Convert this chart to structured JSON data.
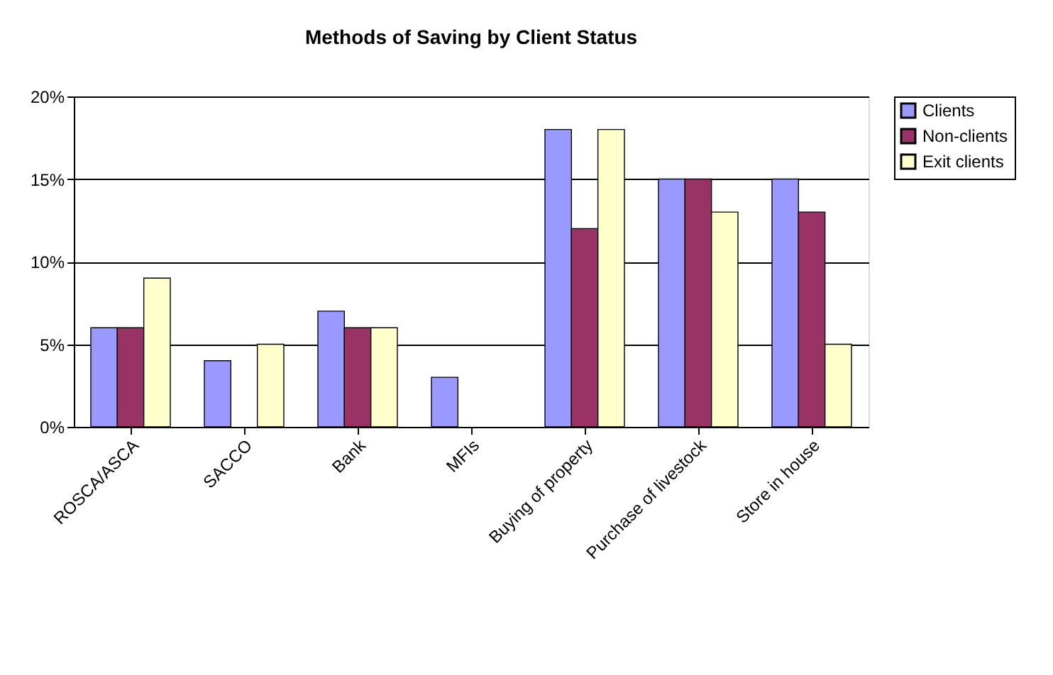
{
  "chart_data": {
    "type": "bar",
    "title": "Methods of Saving by Client Status",
    "categories": [
      "ROSCA/ASCA",
      "SACCO",
      "Bank",
      "MFIs",
      "Buying of property",
      "Purchase of livestock",
      "Store in house"
    ],
    "series": [
      {
        "name": "Clients",
        "color": "#9999ff",
        "values": [
          6,
          4,
          7,
          3,
          18,
          15,
          15
        ]
      },
      {
        "name": "Non-clients",
        "color": "#993366",
        "values": [
          6,
          null,
          6,
          null,
          12,
          15,
          13
        ]
      },
      {
        "name": "Exit clients",
        "color": "#ffffcc",
        "values": [
          9,
          5,
          6,
          null,
          18,
          13,
          5
        ]
      }
    ],
    "ylim": [
      0,
      20
    ],
    "yticks": [
      {
        "value": 0,
        "label": "0%"
      },
      {
        "value": 5,
        "label": "5%"
      },
      {
        "value": 10,
        "label": "10%"
      },
      {
        "value": 15,
        "label": "15%"
      },
      {
        "value": 20,
        "label": "20%"
      }
    ],
    "grid": "y",
    "legend": "right"
  }
}
